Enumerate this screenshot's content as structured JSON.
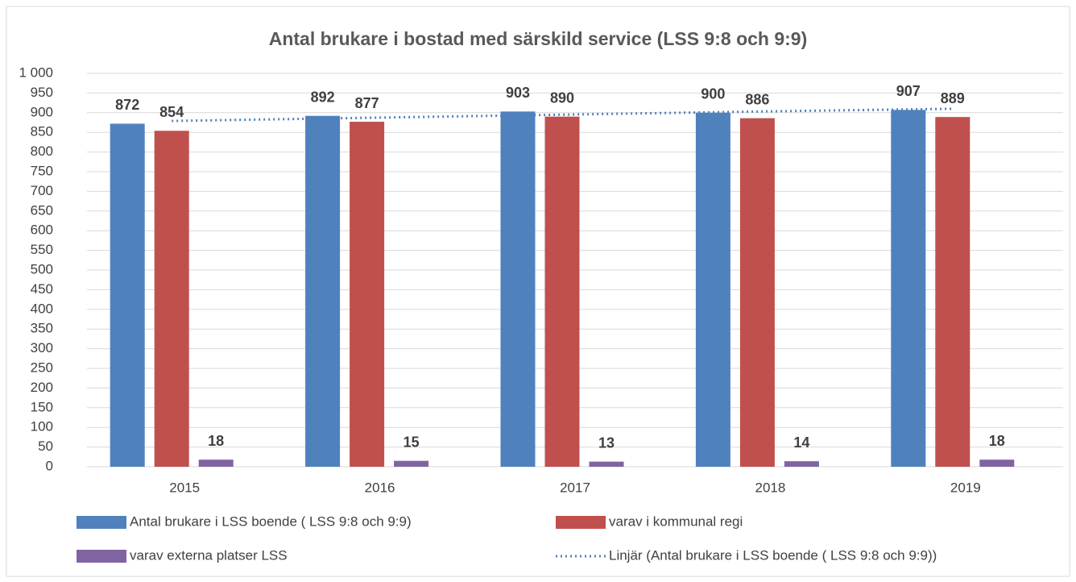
{
  "chart_data": {
    "type": "bar",
    "title": "Antal brukare i bostad med särskild service (LSS 9:8 och 9:9)",
    "categories": [
      "2015",
      "2016",
      "2017",
      "2018",
      "2019"
    ],
    "series": [
      {
        "name": "Antal brukare i LSS boende ( LSS 9:8 och 9:9)",
        "color": "#4f81bd",
        "values": [
          872,
          892,
          903,
          900,
          907
        ]
      },
      {
        "name": "varav i kommunal regi",
        "color": "#c0504d",
        "values": [
          854,
          877,
          890,
          886,
          889
        ]
      },
      {
        "name": "varav externa platser LSS",
        "color": "#8064a2",
        "values": [
          18,
          15,
          13,
          14,
          18
        ]
      }
    ],
    "trendline": {
      "type": "line",
      "name": "Linjär (Antal brukare i LSS boende ( LSS 9:8 och 9:9))",
      "color": "#4f81bd",
      "style": "dotted",
      "values": [
        879,
        887,
        895,
        903,
        910
      ]
    },
    "ylim": [
      0,
      1000
    ],
    "yticks": [
      0,
      50,
      100,
      150,
      200,
      250,
      300,
      350,
      400,
      450,
      500,
      550,
      600,
      650,
      700,
      750,
      800,
      850,
      900,
      950,
      {
        "value": 1000,
        "label": "1 000"
      }
    ],
    "grid": true
  }
}
